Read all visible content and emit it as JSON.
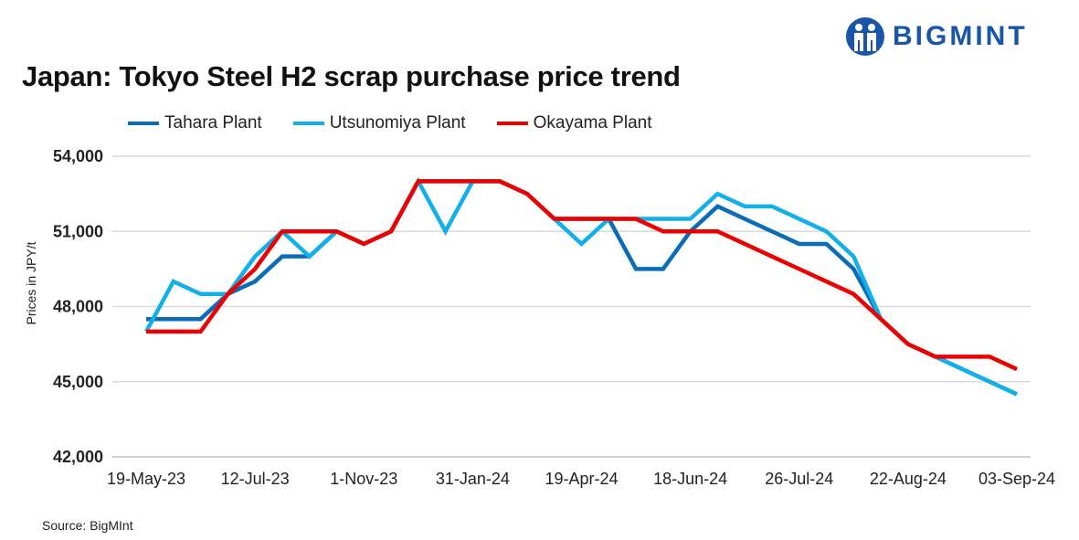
{
  "logo": {
    "text": "BIGMINT"
  },
  "chart_data": {
    "type": "line",
    "title": "Japan: Tokyo Steel H2 scrap purchase price trend",
    "ylabel": "Prices in JPY/t",
    "xlabel": "",
    "ylim": [
      42000,
      54000
    ],
    "yticks": [
      42000,
      45000,
      48000,
      51000,
      54000
    ],
    "ytick_labels": [
      "42,000",
      "45,000",
      "48,000",
      "51,000",
      "54,000"
    ],
    "x_tick_index": [
      0,
      4,
      8,
      12,
      16,
      20,
      24,
      28,
      32
    ],
    "x_tick_labels": [
      "19-May-23",
      "12-Jul-23",
      "1-Nov-23",
      "31-Jan-24",
      "19-Apr-24",
      "18-Jun-24",
      "26-Jul-24",
      "22-Aug-24",
      "03-Sep-24"
    ],
    "grid": true,
    "legend_position": "top-left",
    "series": [
      {
        "name": "Tahara Plant",
        "color": "#0b6db7",
        "values": [
          47500,
          47500,
          47500,
          48500,
          49000,
          50000,
          50000,
          51000,
          50500,
          51000,
          53000,
          53000,
          53000,
          53000,
          52500,
          51500,
          51500,
          51500,
          49500,
          49500,
          51000,
          52000,
          51500,
          51000,
          50500,
          50500,
          49500,
          47500,
          46500,
          46000,
          45500,
          45000,
          44500
        ]
      },
      {
        "name": "Utsunomiya Plant",
        "color": "#11b0e8",
        "values": [
          47000,
          49000,
          48500,
          48500,
          50000,
          51000,
          50000,
          51000,
          50500,
          51000,
          53000,
          51000,
          53000,
          53000,
          52500,
          51500,
          50500,
          51500,
          51500,
          51500,
          51500,
          52500,
          52000,
          52000,
          51500,
          51000,
          50000,
          47500,
          46500,
          46000,
          45500,
          45000,
          44500
        ]
      },
      {
        "name": "Okayama Plant",
        "color": "#ee0000",
        "values": [
          47000,
          47000,
          47000,
          48500,
          49500,
          51000,
          51000,
          51000,
          50500,
          51000,
          53000,
          53000,
          53000,
          53000,
          52500,
          51500,
          51500,
          51500,
          51500,
          51000,
          51000,
          51000,
          50500,
          50000,
          49500,
          49000,
          48500,
          47500,
          46500,
          46000,
          46000,
          46000,
          45500
        ]
      }
    ],
    "source": "Source: BigMInt"
  }
}
